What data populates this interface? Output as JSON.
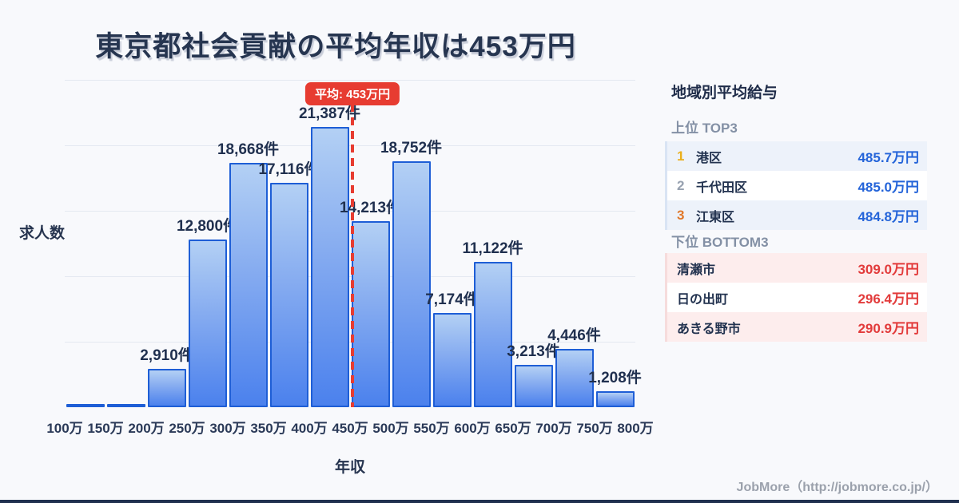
{
  "page": {
    "title": "東京都社会貢献の平均年収は453万円"
  },
  "chart_data": {
    "type": "bar",
    "title": "東京都社会貢献の平均年収は453万円",
    "xlabel": "年収",
    "ylabel": "求人数",
    "unit_suffix": "件",
    "ylim": [
      0,
      25000
    ],
    "gridline_values": [
      5000,
      10000,
      15000,
      20000,
      25000
    ],
    "x_range": [
      100,
      800
    ],
    "bin_width": 50,
    "x_tick_labels": [
      "100万",
      "150万",
      "200万",
      "250万",
      "300万",
      "350万",
      "400万",
      "450万",
      "500万",
      "550万",
      "600万",
      "650万",
      "700万",
      "750万",
      "800万"
    ],
    "values": [
      120,
      150,
      2910,
      12800,
      18668,
      17116,
      21387,
      14213,
      18752,
      7174,
      11122,
      3213,
      4446,
      1208
    ],
    "value_labels": [
      "",
      "",
      "2,910件",
      "12,800件",
      "18,668件",
      "17,116件",
      "21,387件",
      "14,213件",
      "18,752件",
      "7,174件",
      "11,122件",
      "3,213件",
      "4,446件",
      "1,208件"
    ],
    "average": {
      "value": 453,
      "label": "平均: 453万円"
    },
    "grid": true,
    "legend_position": "none"
  },
  "sidebar": {
    "title": "地域別平均給与",
    "top3": {
      "heading": "上位 TOP3",
      "rows": [
        {
          "rank": "1",
          "name": "港区",
          "value": "485.7万円"
        },
        {
          "rank": "2",
          "name": "千代田区",
          "value": "485.0万円"
        },
        {
          "rank": "3",
          "name": "江東区",
          "value": "484.8万円"
        }
      ]
    },
    "bottom3": {
      "heading": "下位 BOTTOM3",
      "rows": [
        {
          "name": "清瀬市",
          "value": "309.0万円"
        },
        {
          "name": "日の出町",
          "value": "296.4万円"
        },
        {
          "name": "あきる野市",
          "value": "290.9万円"
        }
      ]
    }
  },
  "footer": {
    "credit": "JobMore（http://jobmore.co.jp/）"
  },
  "colors": {
    "background": "#f8f9fc",
    "title_text": "#263550",
    "accent_red": "#e73c31",
    "bar_border": "#1e5ed6",
    "bar_gradient_top": "#b3d0f4",
    "bar_gradient_bottom": "#4b81ed",
    "gridline": "#e4e9f1",
    "top_value_blue": "#2464d9",
    "bottom_value_red": "#e23b3b",
    "rank1_gold": "#eaaf1c",
    "rank2_gray": "#97a1b0",
    "rank3_orange": "#e0782a",
    "row_alt_blue": "#edf2fa",
    "row_alt_pink": "#fdeded",
    "footer_gray": "#9ba1ac"
  }
}
